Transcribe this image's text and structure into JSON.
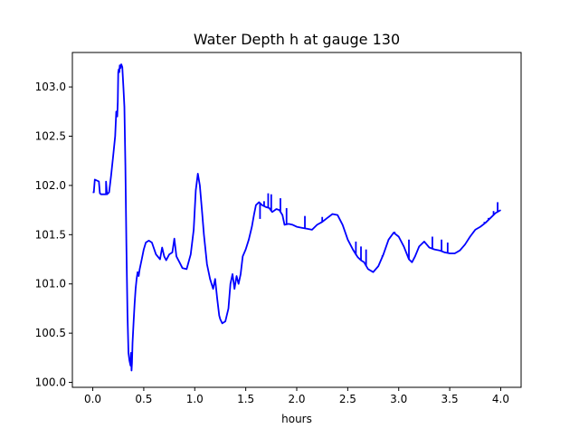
{
  "chart_data": {
    "type": "line",
    "title": "Water Depth h at gauge 130",
    "xlabel": "hours",
    "ylabel": "",
    "xlim": [
      -0.2,
      4.2
    ],
    "ylim": [
      99.95,
      103.35
    ],
    "xticks": [
      0.0,
      0.5,
      1.0,
      1.5,
      2.0,
      2.5,
      3.0,
      3.5,
      4.0
    ],
    "xtick_labels": [
      "0.0",
      "0.5",
      "1.0",
      "1.5",
      "2.0",
      "2.5",
      "3.0",
      "3.5",
      "4.0"
    ],
    "yticks": [
      100.0,
      100.5,
      101.0,
      101.5,
      102.0,
      102.5,
      103.0
    ],
    "ytick_labels": [
      "100.0",
      "100.5",
      "101.0",
      "101.5",
      "102.0",
      "102.5",
      "103.0"
    ],
    "grid": false,
    "legend": "none",
    "series": [
      {
        "color": "#0000ff",
        "x": [
          0.0,
          0.01,
          0.02,
          0.04,
          0.06,
          0.07,
          0.08,
          0.1,
          0.13,
          0.13,
          0.14,
          0.16,
          0.18,
          0.2,
          0.22,
          0.23,
          0.24,
          0.245,
          0.25,
          0.255,
          0.26,
          0.265,
          0.27,
          0.28,
          0.29,
          0.3,
          0.31,
          0.32,
          0.33,
          0.34,
          0.35,
          0.36,
          0.37,
          0.375,
          0.38,
          0.385,
          0.39,
          0.4,
          0.41,
          0.42,
          0.43,
          0.44,
          0.45,
          0.46,
          0.48,
          0.5,
          0.52,
          0.55,
          0.58,
          0.62,
          0.66,
          0.68,
          0.7,
          0.72,
          0.75,
          0.78,
          0.8,
          0.82,
          0.85,
          0.88,
          0.92,
          0.96,
          0.99,
          1.01,
          1.03,
          1.05,
          1.07,
          1.09,
          1.12,
          1.15,
          1.18,
          1.2,
          1.22,
          1.24,
          1.25,
          1.27,
          1.3,
          1.33,
          1.35,
          1.37,
          1.39,
          1.41,
          1.43,
          1.45,
          1.47,
          1.5,
          1.53,
          1.56,
          1.58,
          1.6,
          1.63,
          1.66,
          1.7,
          1.73,
          1.76,
          1.8,
          1.83,
          1.86,
          1.88,
          1.92,
          1.96,
          2.0,
          2.05,
          2.1,
          2.15,
          2.2,
          2.25,
          2.3,
          2.35,
          2.4,
          2.45,
          2.5,
          2.55,
          2.58,
          2.6,
          2.63,
          2.66,
          2.7,
          2.75,
          2.8,
          2.85,
          2.9,
          2.95,
          3.0,
          3.05,
          3.1,
          3.13,
          3.16,
          3.2,
          3.25,
          3.3,
          3.35,
          3.4,
          3.45,
          3.5,
          3.55,
          3.6,
          3.65,
          3.7,
          3.75,
          3.8,
          3.85,
          3.9,
          3.95,
          4.0
        ],
        "y": [
          101.93,
          101.93,
          102.06,
          102.05,
          102.04,
          101.92,
          101.91,
          101.91,
          101.91,
          102.04,
          101.91,
          101.93,
          102.1,
          102.3,
          102.5,
          102.75,
          102.7,
          102.85,
          103.15,
          103.18,
          103.15,
          103.22,
          103.19,
          103.23,
          103.2,
          103.0,
          102.8,
          102.2,
          101.4,
          100.7,
          100.3,
          100.22,
          100.17,
          100.3,
          100.12,
          100.2,
          100.4,
          100.6,
          100.8,
          100.95,
          101.05,
          101.12,
          101.08,
          101.15,
          101.25,
          101.35,
          101.42,
          101.44,
          101.42,
          101.3,
          101.25,
          101.37,
          101.28,
          101.24,
          101.3,
          101.32,
          101.46,
          101.28,
          101.22,
          101.16,
          101.15,
          101.3,
          101.55,
          101.95,
          102.12,
          102.0,
          101.75,
          101.5,
          101.2,
          101.05,
          100.95,
          101.05,
          100.85,
          100.68,
          100.64,
          100.6,
          100.62,
          100.75,
          101.0,
          101.1,
          100.95,
          101.08,
          101.0,
          101.1,
          101.28,
          101.35,
          101.45,
          101.58,
          101.7,
          101.8,
          101.83,
          101.8,
          101.78,
          101.77,
          101.73,
          101.76,
          101.75,
          101.7,
          101.6,
          101.61,
          101.6,
          101.58,
          101.57,
          101.56,
          101.55,
          101.6,
          101.63,
          101.67,
          101.71,
          101.7,
          101.6,
          101.45,
          101.35,
          101.3,
          101.27,
          101.24,
          101.22,
          101.15,
          101.12,
          101.18,
          101.3,
          101.45,
          101.52,
          101.48,
          101.38,
          101.25,
          101.22,
          101.28,
          101.38,
          101.43,
          101.37,
          101.35,
          101.34,
          101.32,
          101.31,
          101.31,
          101.34,
          101.4,
          101.48,
          101.55,
          101.58,
          101.62,
          101.67,
          101.72,
          101.75
        ],
        "spikes": [
          [
            1.64,
            101.66
          ],
          [
            1.68,
            101.84
          ],
          [
            1.72,
            101.92
          ],
          [
            1.75,
            101.91
          ],
          [
            1.84,
            101.87
          ],
          [
            1.9,
            101.77
          ],
          [
            2.08,
            101.69
          ],
          [
            2.25,
            101.68
          ],
          [
            2.58,
            101.43
          ],
          [
            2.63,
            101.38
          ],
          [
            2.68,
            101.35
          ],
          [
            2.84,
            101.29
          ],
          [
            2.92,
            101.48
          ],
          [
            2.96,
            101.53
          ],
          [
            3.1,
            101.45
          ],
          [
            3.33,
            101.48
          ],
          [
            3.42,
            101.45
          ],
          [
            3.48,
            101.42
          ],
          [
            3.84,
            101.63
          ],
          [
            3.88,
            101.67
          ],
          [
            3.93,
            101.74
          ],
          [
            3.97,
            101.83
          ]
        ]
      }
    ]
  }
}
